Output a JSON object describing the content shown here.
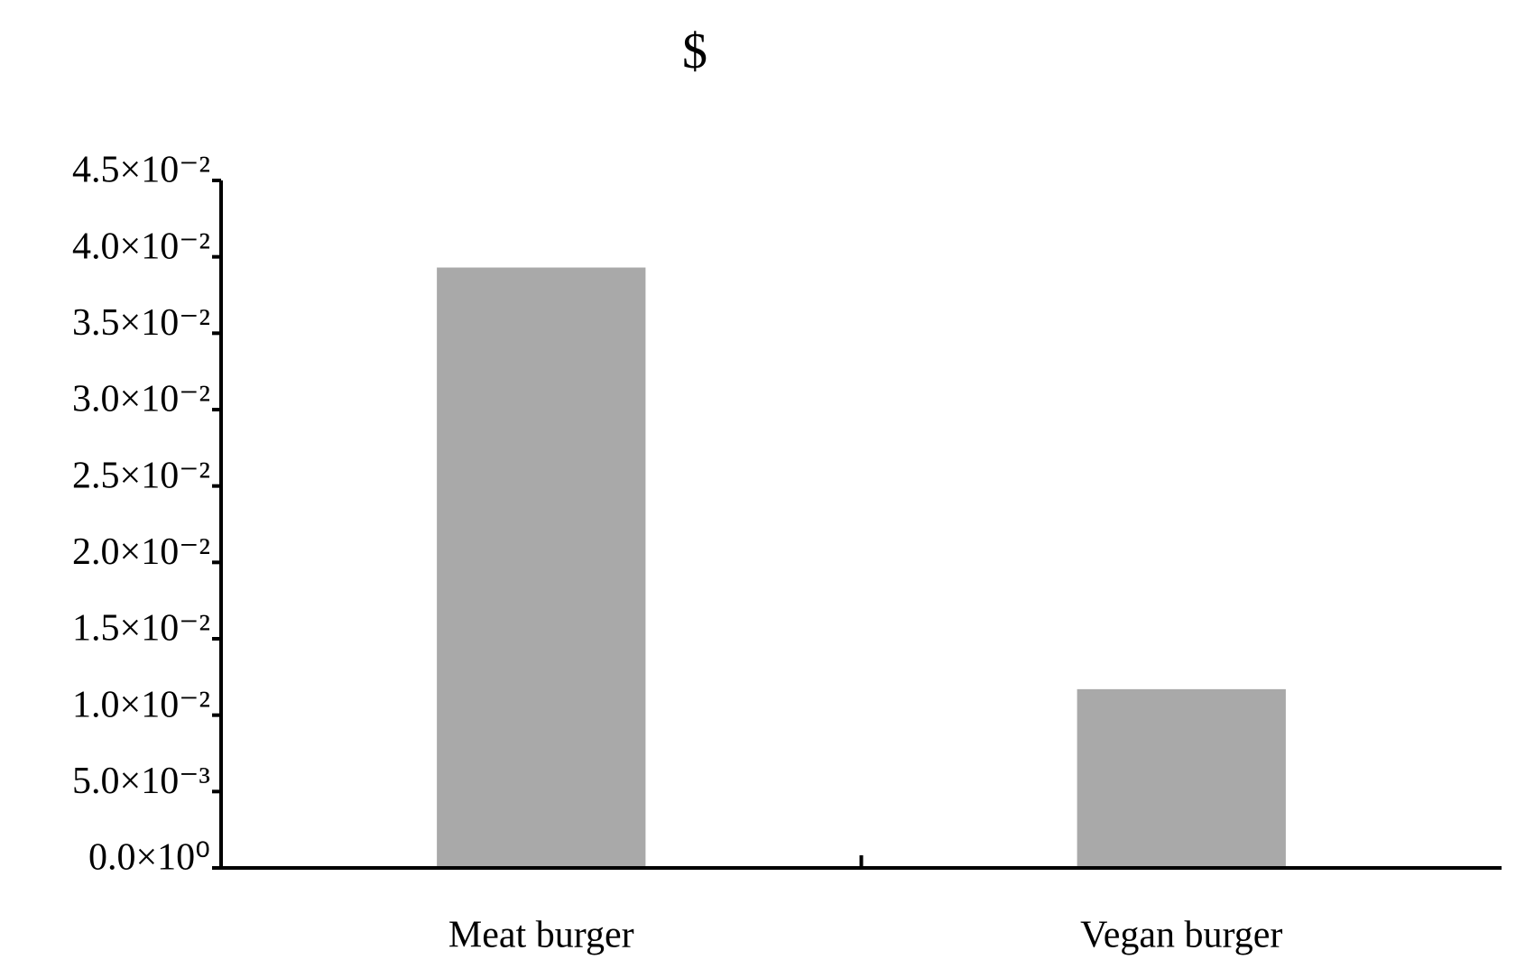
{
  "chart_data": {
    "type": "bar",
    "title": "$",
    "categories": [
      "Meat burger",
      "Vegan burger"
    ],
    "values": [
      0.0393,
      0.0117
    ],
    "color": "#a9a9a9",
    "ylim": [
      0,
      0.045
    ],
    "yticks": [
      {
        "value": 0,
        "label": "0.0×10⁰"
      },
      {
        "value": 0.005,
        "label": "5.0×10⁻³"
      },
      {
        "value": 0.01,
        "label": "1.0×10⁻²"
      },
      {
        "value": 0.015,
        "label": "1.5×10⁻²"
      },
      {
        "value": 0.02,
        "label": "2.0×10⁻²"
      },
      {
        "value": 0.025,
        "label": "2.5×10⁻²"
      },
      {
        "value": 0.03,
        "label": "3.0×10⁻²"
      },
      {
        "value": 0.035,
        "label": "3.5×10⁻²"
      },
      {
        "value": 0.04,
        "label": "4.0×10⁻²"
      },
      {
        "value": 0.045,
        "label": "4.5×10⁻²"
      }
    ],
    "grid": false
  }
}
